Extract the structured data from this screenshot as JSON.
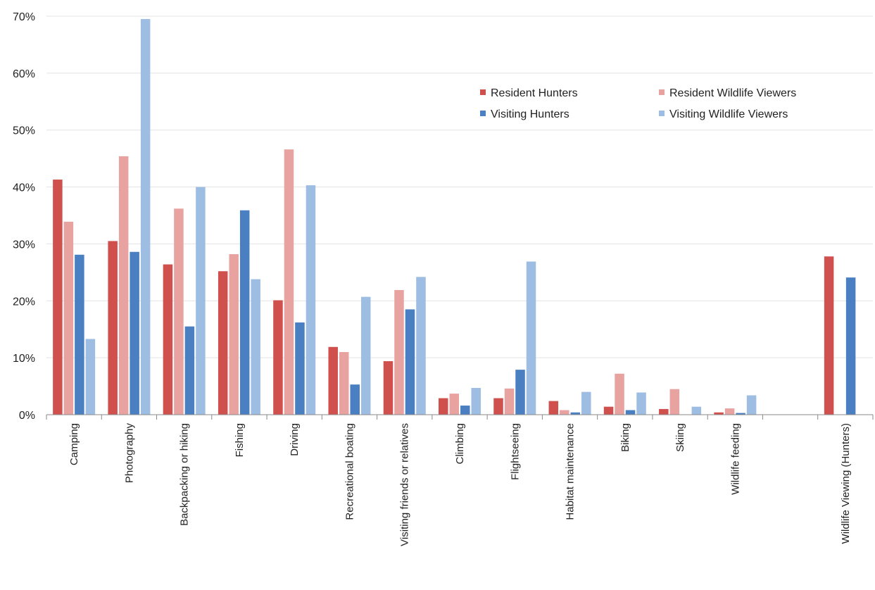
{
  "chart_data": {
    "type": "bar",
    "title": "",
    "xlabel": "",
    "ylabel": "",
    "ylim": [
      0,
      70
    ],
    "y_ticks": [
      "0%",
      "10%",
      "20%",
      "30%",
      "40%",
      "50%",
      "60%",
      "70%"
    ],
    "y_tick_values": [
      0,
      10,
      20,
      30,
      40,
      50,
      60,
      70
    ],
    "grid": true,
    "legend_position": "top-right",
    "categories": [
      "Camping",
      "Photography",
      "Backpacking or hiking",
      "Fishing",
      "Driving",
      "Recreational boating",
      "Visiting friends or relatives",
      "Climbing",
      "Flightseeing",
      "Habitat maintenance",
      "Biking",
      "Skiing",
      "Wildlife feeding",
      "",
      "Wildlife Viewing (Hunters)"
    ],
    "series": [
      {
        "name": "Resident Hunters",
        "color": "#d0504e",
        "values": [
          41.3,
          30.5,
          26.4,
          25.2,
          20.1,
          11.9,
          9.4,
          2.9,
          2.9,
          2.4,
          1.4,
          1.0,
          0.4,
          null,
          27.8
        ]
      },
      {
        "name": "Resident Wildlife Viewers",
        "color": "#e8a3a1",
        "values": [
          33.9,
          45.4,
          36.2,
          28.2,
          46.6,
          11.0,
          21.9,
          3.7,
          4.6,
          0.8,
          7.2,
          4.5,
          1.1,
          null,
          null
        ]
      },
      {
        "name": "Visiting Hunters",
        "color": "#4a7fc1",
        "values": [
          28.1,
          28.6,
          15.5,
          35.9,
          16.2,
          5.3,
          18.5,
          1.6,
          7.9,
          0.4,
          0.8,
          null,
          0.3,
          null,
          24.1
        ]
      },
      {
        "name": "Visiting Wildlife Viewers",
        "color": "#9dbde3",
        "values": [
          13.3,
          69.5,
          40.0,
          23.8,
          40.3,
          20.7,
          24.2,
          4.7,
          26.9,
          4.0,
          3.9,
          1.4,
          3.4,
          null,
          null
        ]
      }
    ]
  }
}
